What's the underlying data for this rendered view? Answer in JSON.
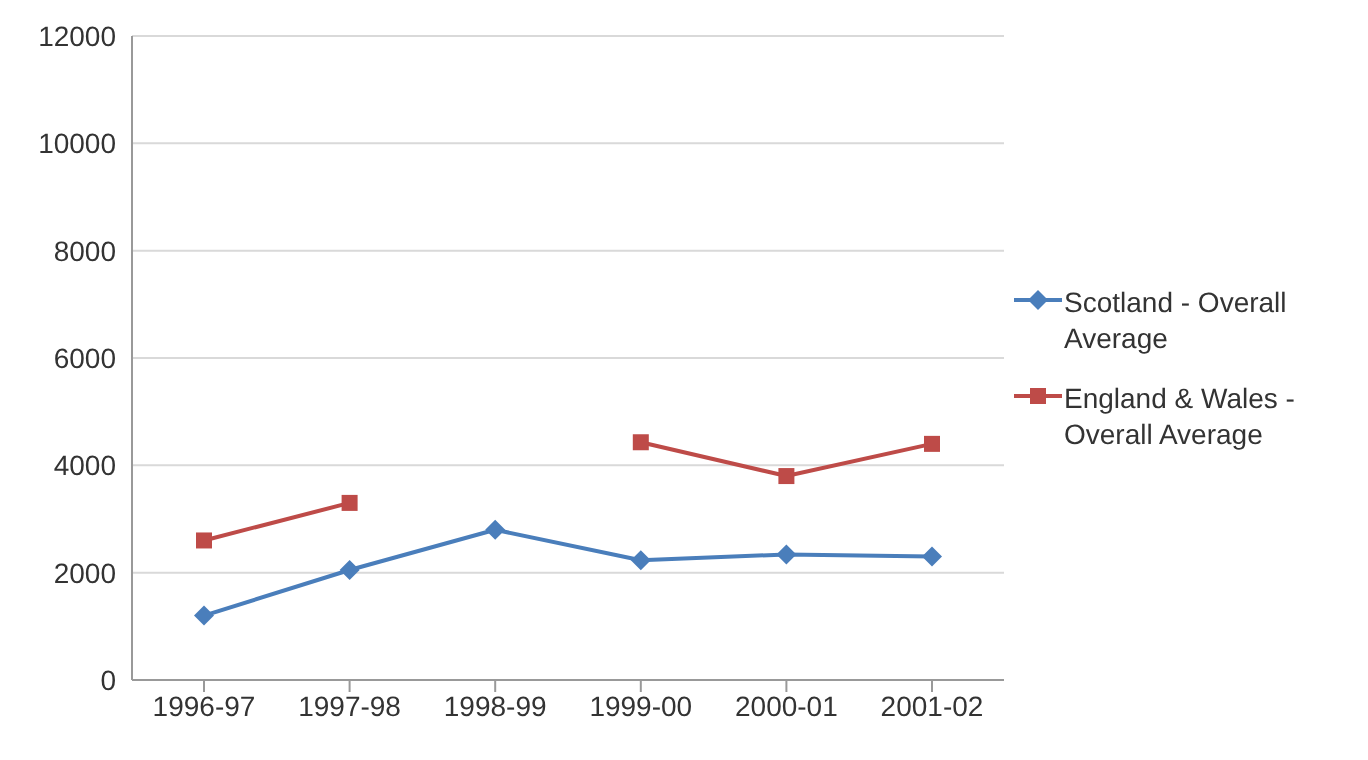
{
  "chart_data": {
    "type": "line",
    "categories": [
      "1996-97",
      "1997-98",
      "1998-99",
      "1999-00",
      "2000-01",
      "2001-02"
    ],
    "series": [
      {
        "name": "Scotland - Overall Average",
        "color": "#4a7ebb",
        "marker": "diamond",
        "values": [
          1200,
          2050,
          2800,
          2230,
          2340,
          2300
        ]
      },
      {
        "name": "England & Wales - Overall Average",
        "color": "#be4b48",
        "marker": "square",
        "values": [
          2600,
          3300,
          null,
          4430,
          3800,
          4400
        ]
      }
    ],
    "ylim": [
      0,
      12000
    ],
    "yticks": [
      0,
      2000,
      4000,
      6000,
      8000,
      10000,
      12000
    ],
    "grid": "y",
    "legend": "right",
    "line_style": "solid"
  }
}
